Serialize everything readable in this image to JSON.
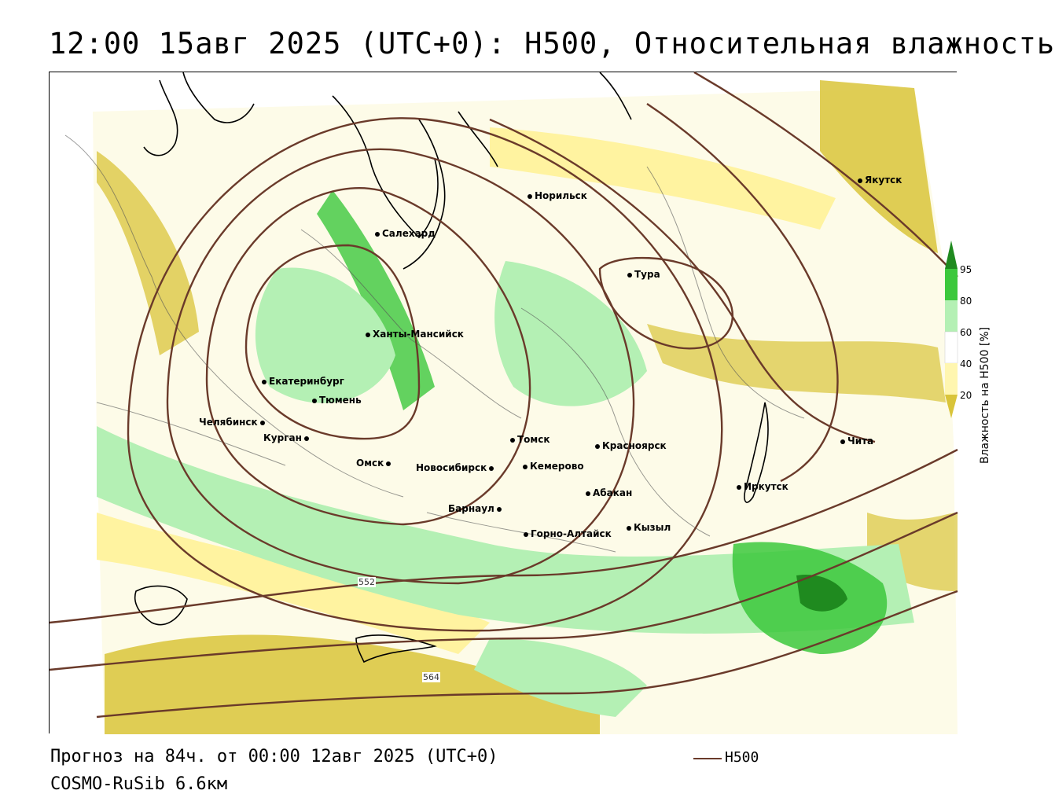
{
  "title": "12:00 15авг 2025 (UTC+0): H500, Относительная влажность",
  "footer": {
    "forecast": "Прогноз на 84ч. от 00:00 12авг 2025 (UTC+0)",
    "model": "COSMO-RuSib 6.6км",
    "legend_line_label": "H500"
  },
  "colorbar": {
    "title": "Влажность на H500 [%]",
    "ticks": [
      "95",
      "80",
      "60",
      "40",
      "20"
    ],
    "colors": {
      "very_high": "#1f8a1f",
      "high": "#3cc83c",
      "mid_high": "#b4f0b4",
      "neutral": "#ffffff",
      "low": "#fff6b0",
      "very_low": "#d9c43a"
    }
  },
  "contour_labels": [
    "552",
    "564"
  ],
  "contour_color": "#6a3a2a",
  "cities": [
    {
      "name": "Норильск"
    },
    {
      "name": "Якутск"
    },
    {
      "name": "Салехард"
    },
    {
      "name": "Тура"
    },
    {
      "name": "Ханты-Мансийск"
    },
    {
      "name": "Екатеринбург"
    },
    {
      "name": "Тюмень"
    },
    {
      "name": "Челябинск"
    },
    {
      "name": "Курган"
    },
    {
      "name": "Омск"
    },
    {
      "name": "Новосибирск"
    },
    {
      "name": "Томск"
    },
    {
      "name": "Кемерово"
    },
    {
      "name": "Красноярск"
    },
    {
      "name": "Барнаул"
    },
    {
      "name": "Абакан"
    },
    {
      "name": "Иркутск"
    },
    {
      "name": "Чита"
    },
    {
      "name": "Горно-Алтайск"
    },
    {
      "name": "Кызыл"
    }
  ]
}
